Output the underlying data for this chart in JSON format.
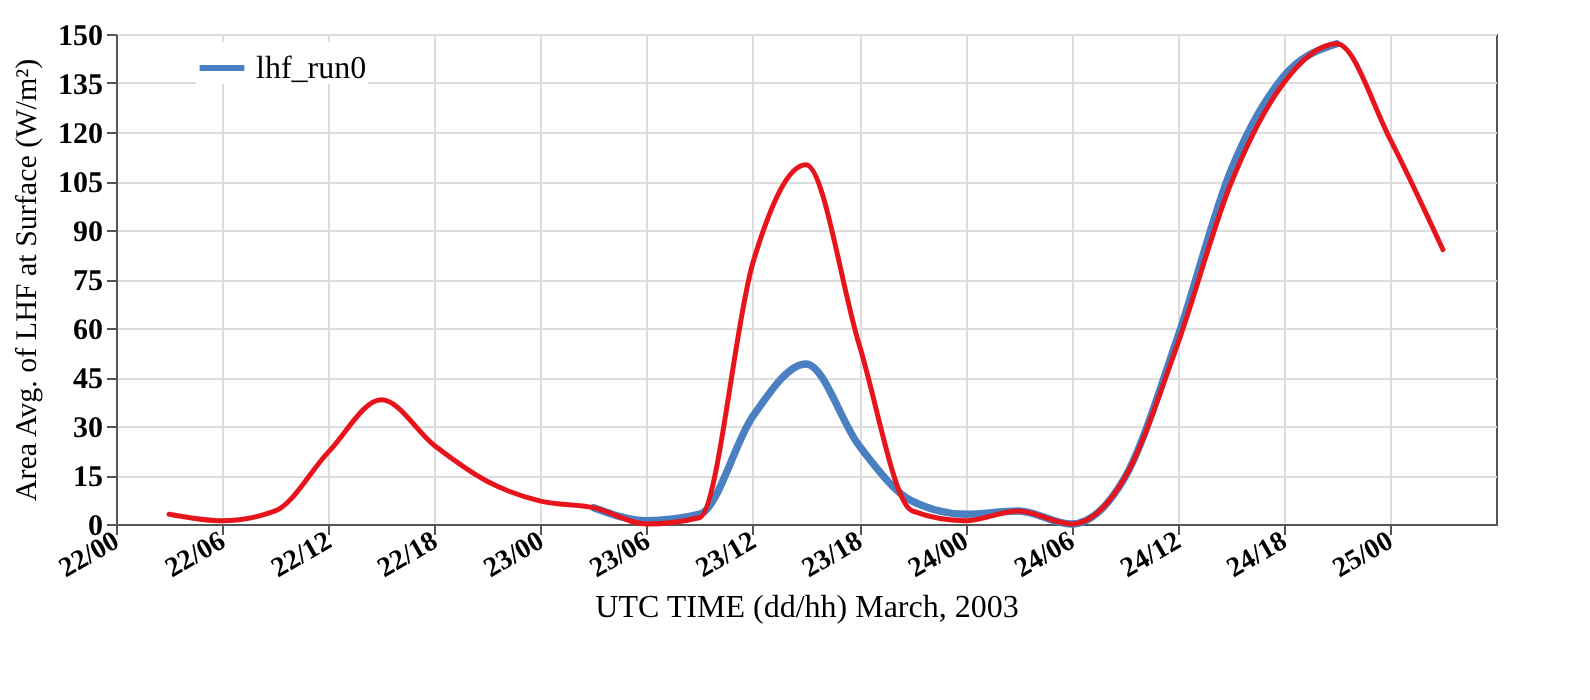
{
  "chart_data": {
    "type": "line",
    "xlabel": "UTC TIME (dd/hh) March, 2003",
    "ylabel": "Area Avg. of LHF at Surface (W/m²)",
    "x": [
      "2003-03-22T03:00",
      "2003-03-22T06:00",
      "2003-03-22T09:00",
      "2003-03-22T12:00",
      "2003-03-22T15:00",
      "2003-03-22T18:00",
      "2003-03-22T21:00",
      "2003-03-23T00:00",
      "2003-03-23T03:00",
      "2003-03-23T06:00",
      "2003-03-23T09:00",
      "2003-03-23T12:00",
      "2003-03-23T15:00",
      "2003-03-23T18:00",
      "2003-03-23T21:00",
      "2003-03-24T00:00",
      "2003-03-24T03:00",
      "2003-03-24T06:00",
      "2003-03-24T09:00",
      "2003-03-24T12:00",
      "2003-03-24T15:00",
      "2003-03-24T18:00",
      "2003-03-24T21:00",
      "2003-03-25T00:00",
      "2003-03-25T03:00"
    ],
    "series": [
      {
        "name": "lhf_run0",
        "color": "#4a7fc1",
        "values": [
          null,
          null,
          null,
          null,
          null,
          null,
          null,
          null,
          5,
          1,
          3,
          33,
          49,
          24,
          7,
          3,
          4,
          0,
          14,
          57,
          108,
          137,
          147,
          null,
          null
        ]
      },
      {
        "color": "#e8141c",
        "values": [
          3,
          1,
          4,
          22,
          38,
          24,
          13,
          7,
          5,
          0,
          2,
          80,
          110,
          55,
          4,
          1,
          4,
          0,
          14,
          55,
          104,
          135,
          147,
          118,
          84
        ]
      }
    ],
    "xlim": [
      "2003-03-22T00:00",
      "2003-03-25T06:00"
    ],
    "xticks": [
      {
        "value": "2003-03-22T00:00",
        "label": "22/00"
      },
      {
        "value": "2003-03-22T06:00",
        "label": "22/06"
      },
      {
        "value": "2003-03-22T12:00",
        "label": "22/12"
      },
      {
        "value": "2003-03-22T18:00",
        "label": "22/18"
      },
      {
        "value": "2003-03-23T00:00",
        "label": "23/00"
      },
      {
        "value": "2003-03-23T06:00",
        "label": "23/06"
      },
      {
        "value": "2003-03-23T12:00",
        "label": "23/12"
      },
      {
        "value": "2003-03-23T18:00",
        "label": "23/18"
      },
      {
        "value": "2003-03-24T00:00",
        "label": "24/00"
      },
      {
        "value": "2003-03-24T06:00",
        "label": "24/06"
      },
      {
        "value": "2003-03-24T12:00",
        "label": "24/12"
      },
      {
        "value": "2003-03-24T18:00",
        "label": "24/18"
      },
      {
        "value": "2003-03-25T00:00",
        "label": "25/00"
      }
    ],
    "ylim": [
      0,
      150
    ],
    "yticks": [
      0,
      15,
      30,
      45,
      60,
      75,
      90,
      105,
      120,
      135,
      150
    ],
    "grid": true,
    "legend": "top left",
    "marker": "none",
    "line_style": "solid"
  }
}
